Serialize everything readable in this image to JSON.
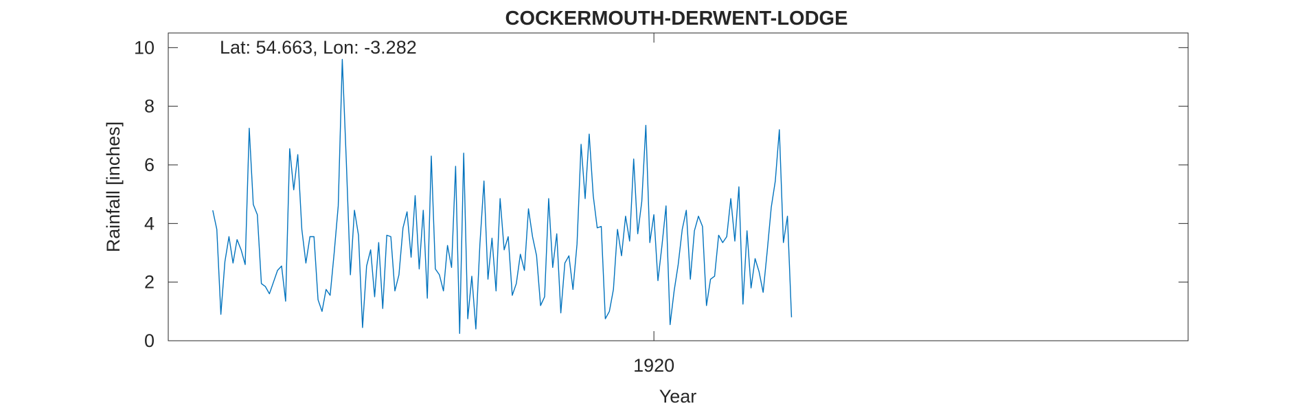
{
  "chart_data": {
    "type": "line",
    "title": "COCKERMOUTH-DERWENT-LODGE",
    "xlabel": "Year",
    "ylabel": "Rainfall [inches]",
    "annotation": "Lat: 54.663, Lon: -3.282",
    "xlim": [
      1910.0,
      1931.0
    ],
    "ylim": [
      0,
      10.5
    ],
    "yticks": [
      0,
      2,
      4,
      6,
      8,
      10
    ],
    "xticks": [
      1920
    ],
    "grid": false,
    "series_color": "#0072BD",
    "x_start": 1910.917,
    "x_step": 0.08333,
    "values": [
      4.45,
      3.8,
      0.9,
      2.7,
      3.55,
      2.65,
      3.45,
      3.1,
      2.6,
      7.25,
      4.65,
      4.3,
      1.95,
      1.85,
      1.6,
      2.0,
      2.4,
      2.55,
      1.35,
      6.55,
      5.15,
      6.35,
      3.8,
      2.65,
      3.55,
      3.55,
      1.4,
      1.0,
      1.75,
      1.55,
      3.0,
      4.6,
      9.6,
      6.1,
      2.25,
      4.45,
      3.6,
      0.45,
      2.55,
      3.1,
      1.5,
      3.35,
      1.1,
      3.6,
      3.55,
      1.7,
      2.25,
      3.85,
      4.4,
      2.85,
      4.95,
      2.45,
      4.45,
      1.45,
      6.3,
      2.45,
      2.25,
      1.7,
      3.25,
      2.5,
      5.95,
      0.25,
      6.4,
      0.75,
      2.2,
      0.4,
      3.3,
      5.45,
      2.1,
      3.5,
      1.7,
      4.85,
      3.1,
      3.55,
      1.55,
      1.95,
      2.95,
      2.4,
      4.5,
      3.55,
      2.9,
      1.2,
      1.5,
      4.85,
      2.5,
      3.65,
      0.95,
      2.65,
      2.9,
      1.75,
      3.3,
      6.7,
      4.85,
      7.05,
      4.95,
      3.85,
      3.9,
      0.75,
      1.0,
      1.75,
      3.8,
      2.9,
      4.25,
      3.4,
      6.2,
      3.65,
      4.75,
      7.35,
      3.35,
      4.3,
      2.05,
      3.25,
      4.6,
      0.55,
      1.7,
      2.6,
      3.8,
      4.45,
      2.1,
      3.75,
      4.25,
      3.9,
      1.2,
      2.1,
      2.2,
      3.6,
      3.35,
      3.55,
      4.85,
      3.4,
      5.25,
      1.25,
      3.75,
      1.8,
      2.8,
      2.35,
      1.65,
      3.05,
      4.55,
      5.45,
      7.2,
      3.35,
      4.25,
      0.8
    ]
  }
}
